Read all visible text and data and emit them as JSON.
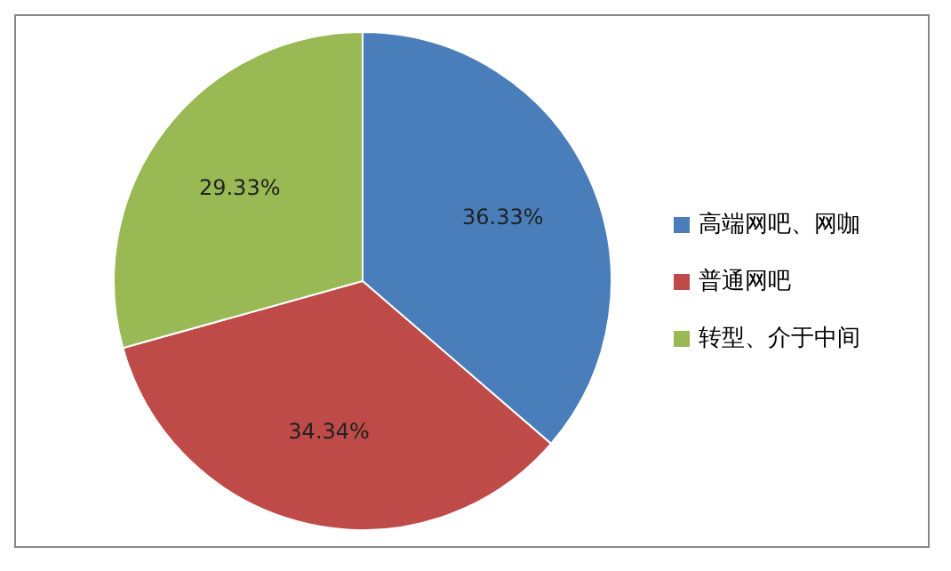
{
  "chart_data": {
    "type": "pie",
    "categories": [
      "高端网吧、网咖",
      "普通网吧",
      "转型、介于中间"
    ],
    "values": [
      36.33,
      34.34,
      29.33
    ],
    "colors": [
      "#4a7ebb",
      "#be4b48",
      "#98b954"
    ],
    "value_labels": [
      "36.33%",
      "34.34%",
      "29.33%"
    ],
    "legend": "right"
  }
}
